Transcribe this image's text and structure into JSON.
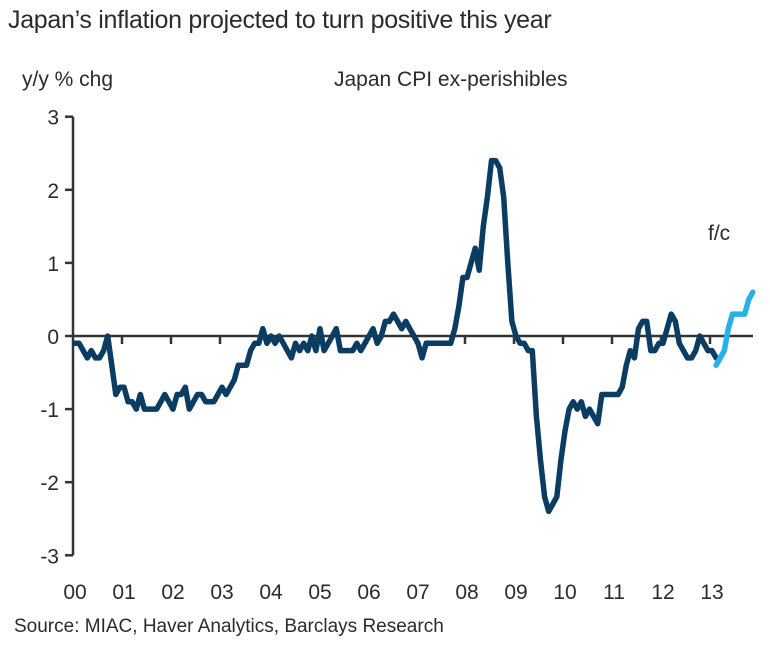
{
  "title": "Japan’s inflation projected to turn positive this year",
  "source": "Source: MIAC, Haver Analytics, Barclays Research",
  "chart_data": {
    "type": "line",
    "title": "Japan’s inflation projected to turn positive this year",
    "ylabel": "y/y % chg",
    "xlabel": "",
    "ylim": [
      -3,
      3
    ],
    "yticks": [
      3,
      2,
      1,
      0,
      -1,
      -2,
      -3
    ],
    "xticks": [
      "00",
      "01",
      "02",
      "03",
      "04",
      "05",
      "06",
      "07",
      "08",
      "09",
      "10",
      "11",
      "12",
      "13"
    ],
    "x_unit": "monthly, Jan 2000 onward",
    "annotation": "f/c",
    "colors": {
      "actual": "#0b3d63",
      "forecast": "#29b0e6",
      "axis": "#333333"
    },
    "series": [
      {
        "name": "Japan CPI ex-perishibles",
        "values": [
          -0.1,
          -0.1,
          -0.2,
          -0.3,
          -0.2,
          -0.3,
          -0.3,
          -0.2,
          0.0,
          -0.4,
          -0.8,
          -0.7,
          -0.7,
          -0.9,
          -0.9,
          -1.0,
          -0.8,
          -1.0,
          -1.0,
          -1.0,
          -1.0,
          -0.9,
          -0.8,
          -0.9,
          -1.0,
          -0.8,
          -0.8,
          -0.7,
          -1.0,
          -0.9,
          -0.8,
          -0.8,
          -0.9,
          -0.9,
          -0.9,
          -0.8,
          -0.7,
          -0.8,
          -0.7,
          -0.6,
          -0.4,
          -0.4,
          -0.4,
          -0.2,
          -0.1,
          -0.1,
          0.1,
          -0.1,
          0.0,
          -0.1,
          0.0,
          -0.1,
          -0.2,
          -0.3,
          -0.1,
          -0.2,
          -0.1,
          -0.2,
          0.0,
          -0.2,
          0.1,
          -0.2,
          -0.1,
          0.0,
          0.1,
          -0.2,
          -0.2,
          -0.2,
          -0.2,
          -0.1,
          -0.2,
          -0.1,
          0.0,
          0.1,
          -0.1,
          0.0,
          0.2,
          0.2,
          0.3,
          0.2,
          0.1,
          0.2,
          0.1,
          0.0,
          -0.1,
          -0.3,
          -0.1,
          -0.1,
          -0.1,
          -0.1,
          -0.1,
          -0.1,
          -0.1,
          0.1,
          0.4,
          0.8,
          0.8,
          1.0,
          1.2,
          0.9,
          1.5,
          1.9,
          2.4,
          2.4,
          2.3,
          1.9,
          1.0,
          0.2,
          0.0,
          -0.1,
          -0.1,
          -0.2,
          -0.2,
          -1.1,
          -1.7,
          -2.2,
          -2.4,
          -2.3,
          -2.2,
          -1.7,
          -1.3,
          -1.0,
          -0.9,
          -1.0,
          -0.9,
          -1.1,
          -1.0,
          -1.1,
          -1.2,
          -0.8,
          -0.8,
          -0.8,
          -0.8,
          -0.8,
          -0.7,
          -0.4,
          -0.2,
          -0.3,
          0.1,
          0.2,
          0.2,
          -0.2,
          -0.2,
          -0.1,
          -0.1,
          0.1,
          0.3,
          0.2,
          -0.1,
          -0.2,
          -0.3,
          -0.3,
          -0.2,
          0.0,
          -0.1,
          -0.2,
          -0.2,
          -0.3
        ]
      },
      {
        "name": "Forecast",
        "start_index": 157,
        "values": [
          -0.4,
          -0.3,
          -0.2,
          0.1,
          0.3,
          0.3,
          0.3,
          0.3,
          0.5,
          0.6
        ]
      }
    ]
  }
}
